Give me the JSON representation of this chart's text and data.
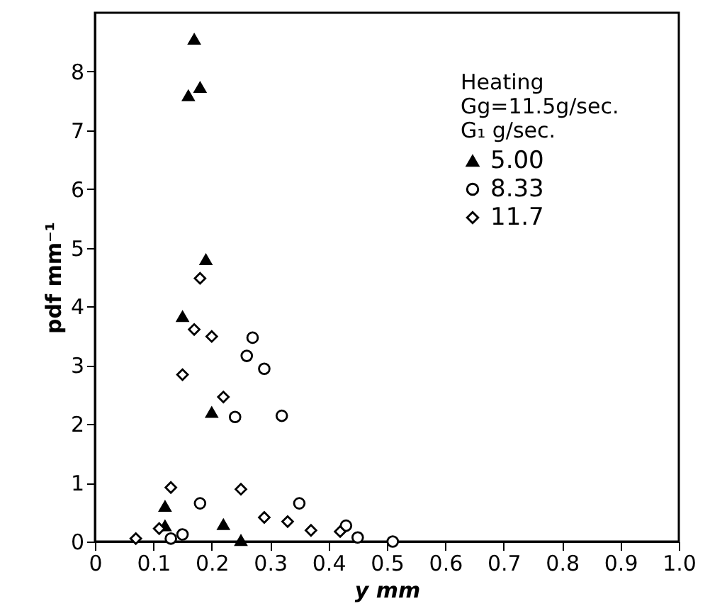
{
  "chart_data": {
    "type": "scatter",
    "xlabel": "y mm",
    "ylabel": "pdf mm⁻¹",
    "legend_title": "Heating\nGg=11.5g/sec.\nG₁   g/sec.",
    "legend": "top right",
    "grid": false,
    "xlim": [
      0,
      1
    ],
    "ylim": [
      0,
      9
    ],
    "xticks": [
      0,
      0.1,
      0.2,
      0.3,
      0.4,
      0.5,
      0.6,
      0.7,
      0.8,
      0.9,
      {
        "value": 1,
        "label": "1.0"
      }
    ],
    "yticks": [
      0,
      1,
      2,
      3,
      4,
      5,
      6,
      7,
      8
    ],
    "series": [
      {
        "name": "5.00",
        "color": "#000000",
        "marker": "triangle",
        "x": [
          0.17,
          0.16,
          0.18,
          0.19,
          0.15,
          0.2,
          0.12,
          0.12,
          0.22,
          0.25
        ],
        "values": [
          8.55,
          7.59,
          7.73,
          4.8,
          3.83,
          2.2,
          0.6,
          0.27,
          0.29,
          0.02
        ]
      },
      {
        "name": "8.33",
        "color": "#000000",
        "marker": "circle",
        "x": [
          0.27,
          0.26,
          0.29,
          0.24,
          0.32,
          0.18,
          0.35,
          0.13,
          0.15,
          0.43,
          0.45,
          0.51
        ],
        "values": [
          3.47,
          3.16,
          2.94,
          2.12,
          2.14,
          0.65,
          0.65,
          0.05,
          0.12,
          0.27,
          0.07,
          0.0
        ]
      },
      {
        "name": "11.7",
        "color": "#000000",
        "marker": "diamond",
        "x": [
          0.18,
          0.17,
          0.2,
          0.15,
          0.22,
          0.13,
          0.25,
          0.11,
          0.07,
          0.29,
          0.33,
          0.37,
          0.42
        ],
        "values": [
          4.48,
          3.61,
          3.49,
          2.84,
          2.46,
          0.92,
          0.89,
          0.22,
          0.05,
          0.41,
          0.34,
          0.19,
          0.17
        ]
      }
    ]
  }
}
